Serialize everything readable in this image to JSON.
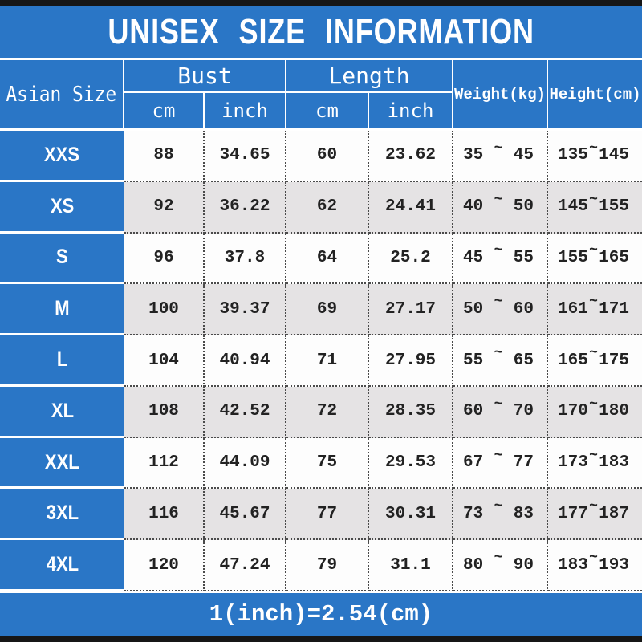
{
  "title": "UNISEX SIZE INFORMATION",
  "footer_note": "1(inch)=2.54(cm)",
  "colors": {
    "accent_blue": "#2a76c6",
    "alt_row_gray": "#e5e3e4",
    "bar_black": "#161616",
    "text_dark": "#222222",
    "text_white": "#ffffff"
  },
  "table": {
    "size_header": "Asian Size",
    "group_headers": [
      {
        "label": "Bust",
        "sub": [
          "cm",
          "inch"
        ]
      },
      {
        "label": "Length",
        "sub": [
          "cm",
          "inch"
        ]
      }
    ],
    "weight_header": "Weight(kg)",
    "height_header": "Height(cm)",
    "range_separator": "~",
    "rows": [
      {
        "size": "XXS",
        "bust_cm": "88",
        "bust_inch": "34.65",
        "length_cm": "60",
        "length_inch": "23.62",
        "weight_min": "35",
        "weight_max": "45",
        "height_min": "135",
        "height_max": "145"
      },
      {
        "size": "XS",
        "bust_cm": "92",
        "bust_inch": "36.22",
        "length_cm": "62",
        "length_inch": "24.41",
        "weight_min": "40",
        "weight_max": "50",
        "height_min": "145",
        "height_max": "155"
      },
      {
        "size": "S",
        "bust_cm": "96",
        "bust_inch": "37.8",
        "length_cm": "64",
        "length_inch": "25.2",
        "weight_min": "45",
        "weight_max": "55",
        "height_min": "155",
        "height_max": "165"
      },
      {
        "size": "M",
        "bust_cm": "100",
        "bust_inch": "39.37",
        "length_cm": "69",
        "length_inch": "27.17",
        "weight_min": "50",
        "weight_max": "60",
        "height_min": "161",
        "height_max": "171"
      },
      {
        "size": "L",
        "bust_cm": "104",
        "bust_inch": "40.94",
        "length_cm": "71",
        "length_inch": "27.95",
        "weight_min": "55",
        "weight_max": "65",
        "height_min": "165",
        "height_max": "175"
      },
      {
        "size": "XL",
        "bust_cm": "108",
        "bust_inch": "42.52",
        "length_cm": "72",
        "length_inch": "28.35",
        "weight_min": "60",
        "weight_max": "70",
        "height_min": "170",
        "height_max": "180"
      },
      {
        "size": "XXL",
        "bust_cm": "112",
        "bust_inch": "44.09",
        "length_cm": "75",
        "length_inch": "29.53",
        "weight_min": "67",
        "weight_max": "77",
        "height_min": "173",
        "height_max": "183"
      },
      {
        "size": "3XL",
        "bust_cm": "116",
        "bust_inch": "45.67",
        "length_cm": "77",
        "length_inch": "30.31",
        "weight_min": "73",
        "weight_max": "83",
        "height_min": "177",
        "height_max": "187"
      },
      {
        "size": "4XL",
        "bust_cm": "120",
        "bust_inch": "47.24",
        "length_cm": "79",
        "length_inch": "31.1",
        "weight_min": "80",
        "weight_max": "90",
        "height_min": "183",
        "height_max": "193"
      }
    ]
  }
}
